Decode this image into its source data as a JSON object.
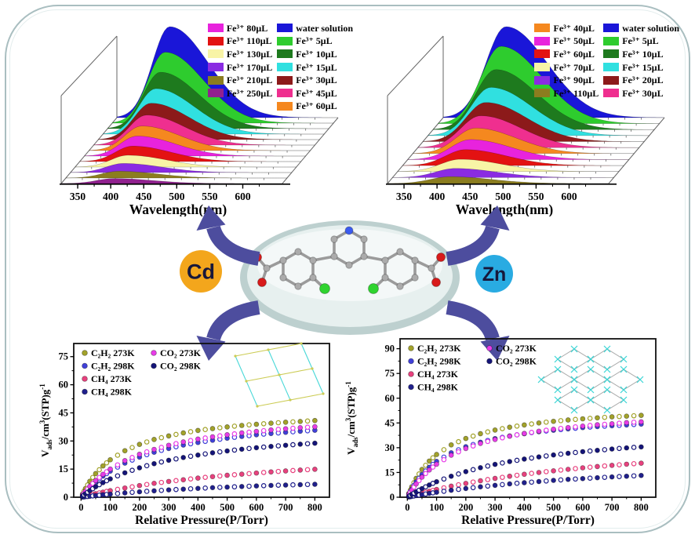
{
  "page": {
    "bg": "#ffffff",
    "border_color": "#a9bec0"
  },
  "center": {
    "cd_label": "Cd",
    "zn_label": "Zn",
    "cd_circle_color": "#f3a61c",
    "zn_circle_color": "#29abe2",
    "label_color": "#17173a",
    "arrow_color": "#4d4d9e",
    "ellipse_rim": "#bdd0cf",
    "ellipse_fill": "#e7f0ef"
  },
  "molecule": {
    "bond_color": "#9b9b9b",
    "atom_colors": {
      "C": "#ababab",
      "N": "#3b5bef",
      "O": "#d81a1a",
      "Cl": "#2fd32f"
    }
  },
  "chart_data": [
    {
      "id": "cd-fluorescence",
      "type": "area",
      "style": "waterfall3d",
      "title": "",
      "xlabel": "Wavelength(nm)",
      "x_ticks": [
        350,
        400,
        450,
        500,
        550,
        600
      ],
      "x_range": [
        325,
        660
      ],
      "peak_nm": 405,
      "sigma_left": 26,
      "sigma_right": 58,
      "series": [
        {
          "label": "water solution",
          "color": "#1a16d8",
          "rel_height": 1.0
        },
        {
          "label": "Fe³⁺ 5μL",
          "color": "#2ecc2e",
          "rel_height": 0.78
        },
        {
          "label": "Fe³⁺ 10μL",
          "color": "#1e7a1e",
          "rel_height": 0.62
        },
        {
          "label": "Fe³⁺ 15μL",
          "color": "#30e0e0",
          "rel_height": 0.5
        },
        {
          "label": "Fe³⁺ 30μL",
          "color": "#8c1a1a",
          "rel_height": 0.4
        },
        {
          "label": "Fe³⁺ 45μL",
          "color": "#ef2f8f",
          "rel_height": 0.33
        },
        {
          "label": "Fe³⁺ 60μL",
          "color": "#f5881f",
          "rel_height": 0.27
        },
        {
          "label": "Fe³⁺ 80μL",
          "color": "#e823dd",
          "rel_height": 0.22
        },
        {
          "label": "Fe³⁺ 110μL",
          "color": "#e31212",
          "rel_height": 0.17
        },
        {
          "label": "Fe³⁺ 130μL",
          "color": "#f8f4a6",
          "rel_height": 0.13
        },
        {
          "label": "Fe³⁺ 170μL",
          "color": "#8a2be2",
          "rel_height": 0.1
        },
        {
          "label": "Fe³⁺ 210μL",
          "color": "#8b7d1f",
          "rel_height": 0.075
        },
        {
          "label": "Fe³⁺ 250μL",
          "color": "#91218f",
          "rel_height": 0.055
        }
      ],
      "legend": {
        "col1": [
          "Fe³⁺ 80μL",
          "Fe³⁺ 110μL",
          "Fe³⁺ 130μL",
          "Fe³⁺ 170μL",
          "Fe³⁺ 210μL",
          "Fe³⁺ 250μL"
        ],
        "col2": [
          "water solution",
          "Fe³⁺ 5μL",
          "Fe³⁺ 10μL",
          "Fe³⁺ 15μL",
          "Fe³⁺ 30μL",
          "Fe³⁺ 45μL",
          "Fe³⁺ 60μL"
        ]
      }
    },
    {
      "id": "zn-fluorescence",
      "type": "area",
      "style": "waterfall3d",
      "title": "",
      "xlabel": "Wavelength(nm)",
      "x_ticks": [
        350,
        400,
        450,
        500,
        550,
        600
      ],
      "x_range": [
        325,
        660
      ],
      "peak_nm": 420,
      "sigma_left": 30,
      "sigma_right": 62,
      "series": [
        {
          "label": "water solution",
          "color": "#1a16d8",
          "rel_height": 1.0
        },
        {
          "label": "Fe³⁺ 5μL",
          "color": "#2ecc2e",
          "rel_height": 0.85
        },
        {
          "label": "Fe³⁺ 10μL",
          "color": "#1e7a1e",
          "rel_height": 0.66
        },
        {
          "label": "Fe³⁺ 15μL",
          "color": "#30e0e0",
          "rel_height": 0.53
        },
        {
          "label": "Fe³⁺ 20μL",
          "color": "#8c1a1a",
          "rel_height": 0.43
        },
        {
          "label": "Fe³⁺ 30μL",
          "color": "#ef2f8f",
          "rel_height": 0.35
        },
        {
          "label": "Fe³⁺ 40μL",
          "color": "#f5881f",
          "rel_height": 0.28
        },
        {
          "label": "Fe³⁺ 50μL",
          "color": "#e823dd",
          "rel_height": 0.22
        },
        {
          "label": "Fe³⁺ 60μL",
          "color": "#e31212",
          "rel_height": 0.175
        },
        {
          "label": "Fe³⁺ 70μL",
          "color": "#f8f4a6",
          "rel_height": 0.135
        },
        {
          "label": "Fe³⁺ 90μL",
          "color": "#8a2be2",
          "rel_height": 0.1
        },
        {
          "label": "Fe³⁺ 110μL",
          "color": "#8b7d1f",
          "rel_height": 0.075
        }
      ],
      "legend": {
        "col1": [
          "Fe³⁺ 40μL",
          "Fe³⁺ 50μL",
          "Fe³⁺ 60μL",
          "Fe³⁺ 70μL",
          "Fe³⁺ 90μL",
          "Fe³⁺ 110μL"
        ],
        "col2": [
          "water solution",
          "Fe³⁺ 5μL",
          "Fe³⁺ 10μL",
          "Fe³⁺ 15μL",
          "Fe³⁺ 20μL",
          "Fe³⁺ 30μL"
        ]
      }
    },
    {
      "id": "cd-adsorption",
      "type": "scatter",
      "xlabel": "Relative Pressure(P/Torr)",
      "ylabel_parts": [
        {
          "t": "V"
        },
        {
          "t": "ads",
          "s": "sub"
        },
        {
          "t": "/cm"
        },
        {
          "t": "3",
          "s": "sup"
        },
        {
          "t": "(STP)g"
        },
        {
          "t": "-1",
          "s": "sup"
        }
      ],
      "x_ticks": [
        0,
        100,
        200,
        300,
        400,
        500,
        600,
        700,
        800
      ],
      "y_ticks": [
        0,
        15,
        30,
        45,
        60,
        75
      ],
      "ylim": [
        0,
        82
      ],
      "xlim": [
        -25,
        850
      ],
      "legend_cols": [
        4,
        2
      ],
      "inset": "parallelogram",
      "inset_colors": [
        "#cccc55",
        "#49d8d8"
      ],
      "x": [
        5,
        15,
        30,
        50,
        75,
        100,
        150,
        200,
        250,
        300,
        350,
        400,
        450,
        500,
        550,
        600,
        650,
        700,
        750,
        800
      ],
      "series": [
        {
          "name": "C₂H₂ 273K",
          "color": "#a2a22a",
          "values": [
            1.7,
            4.6,
            8.5,
            12.6,
            16.7,
            20.0,
            24.8,
            28.2,
            30.8,
            32.7,
            34.3,
            35.6,
            36.6,
            37.5,
            38.3,
            38.9,
            39.5,
            40.0,
            40.4,
            40.9
          ]
        },
        {
          "name": "C₂H₂ 298K",
          "color": "#4040d9",
          "values": [
            1.0,
            2.8,
            5.3,
            8.2,
            11.3,
            13.9,
            18.2,
            21.4,
            24.0,
            26.0,
            27.8,
            29.2,
            30.4,
            31.5,
            32.4,
            33.3,
            34.0,
            34.6,
            35.2,
            35.7
          ]
        },
        {
          "name": "CH₄  273K",
          "color": "#e8417e",
          "values": [
            0.2,
            0.6,
            1.2,
            1.9,
            2.7,
            3.5,
            4.9,
            6.2,
            7.4,
            8.4,
            9.3,
            10.2,
            11.0,
            11.7,
            12.3,
            12.9,
            13.5,
            14.0,
            14.5,
            14.9
          ]
        },
        {
          "name": "CH₄  298K",
          "color": "#20208c",
          "values": [
            0.1,
            0.3,
            0.5,
            0.9,
            1.3,
            1.6,
            2.3,
            2.9,
            3.4,
            3.9,
            4.3,
            4.7,
            5.1,
            5.4,
            5.7,
            6.0,
            6.3,
            6.5,
            6.7,
            6.9
          ]
        },
        {
          "name": "CO₂  273K",
          "color": "#e83ce8",
          "values": [
            1.1,
            3.1,
            5.8,
            8.9,
            12.2,
            15.0,
            19.5,
            22.9,
            25.5,
            27.7,
            29.5,
            31.0,
            32.2,
            33.3,
            34.3,
            35.1,
            35.9,
            36.5,
            37.1,
            37.6
          ]
        },
        {
          "name": "CO₂  298K",
          "color": "#141478",
          "values": [
            0.6,
            1.8,
            3.5,
            5.6,
            7.8,
            9.8,
            13.0,
            15.7,
            17.9,
            19.7,
            21.2,
            22.5,
            23.7,
            24.7,
            25.6,
            26.4,
            27.1,
            27.7,
            28.3,
            28.8
          ]
        }
      ]
    },
    {
      "id": "zn-adsorption",
      "type": "scatter",
      "xlabel": "Relative Pressure(P/Torr)",
      "ylabel_parts": [
        {
          "t": "V"
        },
        {
          "t": "ads",
          "s": "sub"
        },
        {
          "t": "/cm"
        },
        {
          "t": "3",
          "s": "sup"
        },
        {
          "t": "(STP)g"
        },
        {
          "t": "-1",
          "s": "sup"
        }
      ],
      "x_ticks": [
        0,
        100,
        200,
        300,
        400,
        500,
        600,
        700,
        800
      ],
      "y_ticks": [
        0,
        15,
        30,
        45,
        60,
        75,
        90
      ],
      "ylim": [
        0,
        96
      ],
      "xlim": [
        -25,
        850
      ],
      "legend_cols": [
        4,
        2
      ],
      "inset": "diamond",
      "inset_colors": [
        "#a9a9a9",
        "#3ad6d6"
      ],
      "x": [
        5,
        15,
        30,
        50,
        75,
        100,
        150,
        200,
        250,
        300,
        350,
        400,
        450,
        500,
        550,
        600,
        650,
        700,
        750,
        800
      ],
      "series": [
        {
          "name": "C₂H₂ 273K",
          "color": "#a2a22a",
          "values": [
            2.3,
            6.3,
            11.4,
            16.8,
            21.9,
            25.9,
            31.7,
            35.6,
            38.5,
            40.7,
            42.4,
            43.8,
            45.0,
            46.0,
            46.8,
            47.5,
            48.1,
            48.7,
            49.1,
            49.6
          ]
        },
        {
          "name": "C₂H₂ 298K",
          "color": "#4040d9",
          "values": [
            1.8,
            5.0,
            9.2,
            13.7,
            18.1,
            21.7,
            26.9,
            30.6,
            33.3,
            35.5,
            37.1,
            38.5,
            39.7,
            40.6,
            41.4,
            42.2,
            42.8,
            43.3,
            43.8,
            44.3
          ]
        },
        {
          "name": "CH₄  273K",
          "color": "#e8417e",
          "values": [
            0.3,
            0.8,
            1.5,
            2.5,
            3.6,
            4.7,
            6.7,
            8.4,
            10.0,
            11.4,
            12.7,
            13.9,
            15.0,
            16.0,
            16.9,
            17.8,
            18.6,
            19.3,
            20.0,
            20.6
          ]
        },
        {
          "name": "CH₄  298K",
          "color": "#20208c",
          "values": [
            0.2,
            0.5,
            1.0,
            1.6,
            2.3,
            3.0,
            4.2,
            5.3,
            6.3,
            7.2,
            8.1,
            8.8,
            9.5,
            10.2,
            10.8,
            11.3,
            11.8,
            12.3,
            12.7,
            13.2
          ]
        },
        {
          "name": "CO₂  273K",
          "color": "#e83ce8",
          "values": [
            1.5,
            4.3,
            8.0,
            12.2,
            16.5,
            20.0,
            25.5,
            29.5,
            32.6,
            35.0,
            37.0,
            38.6,
            40.0,
            41.2,
            42.2,
            43.1,
            43.9,
            44.5,
            45.2,
            45.7
          ]
        },
        {
          "name": "CO₂  298K",
          "color": "#141478",
          "values": [
            0.6,
            1.7,
            3.3,
            5.2,
            7.4,
            9.4,
            12.7,
            15.5,
            17.9,
            19.9,
            21.6,
            23.1,
            24.4,
            25.6,
            26.6,
            27.6,
            28.4,
            29.2,
            29.9,
            30.5
          ]
        }
      ]
    }
  ]
}
